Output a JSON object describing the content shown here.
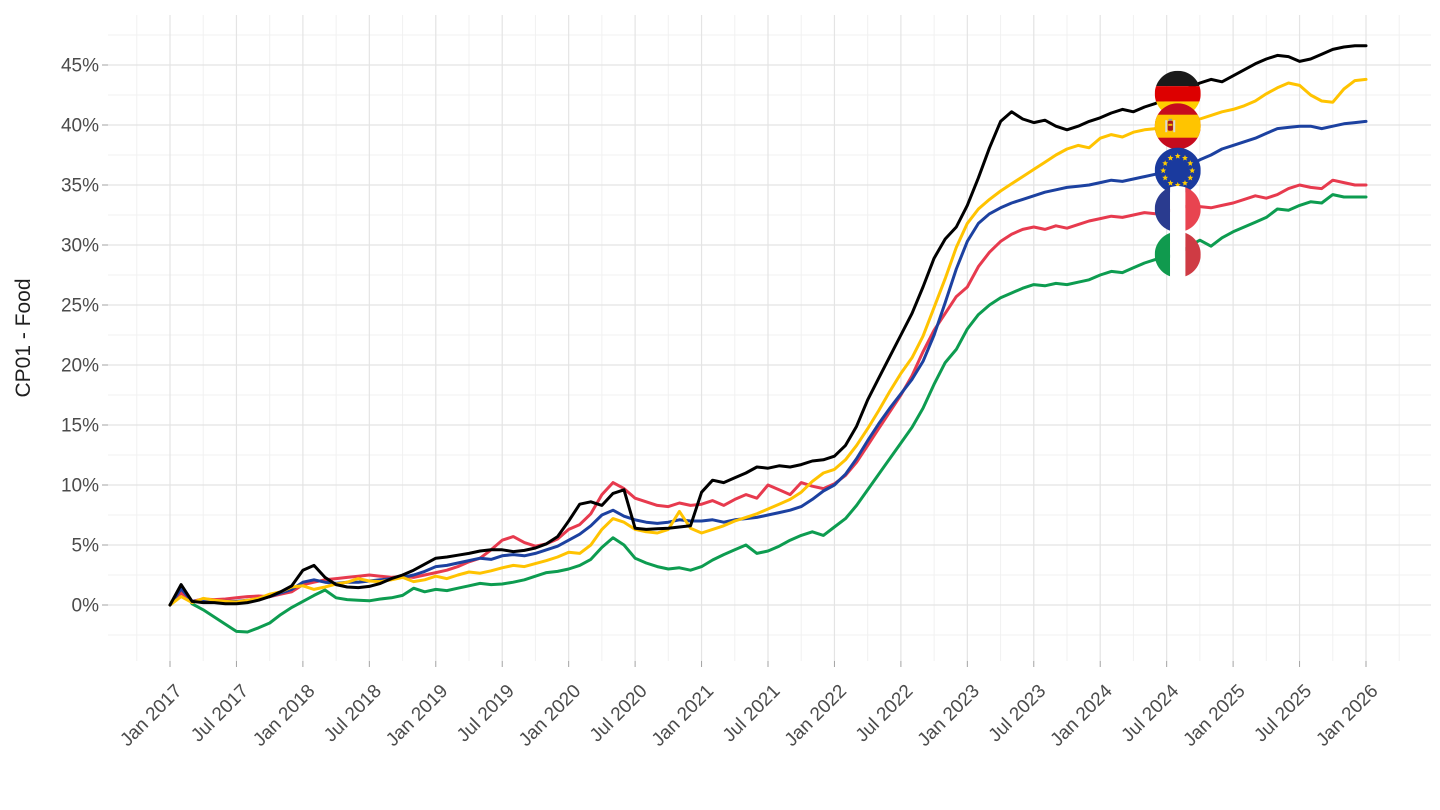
{
  "chart_data": {
    "type": "line",
    "title": "",
    "ylabel": "CP01 - Food",
    "xlabel": "",
    "grid": "major-minor",
    "legend_position": "none-flag-markers-on-lines",
    "x_unit": "months since Jan 2017",
    "x_tick_labels": [
      "Jan 2017",
      "Jul 2017",
      "Jan 2018",
      "Jul 2018",
      "Jan 2019",
      "Jul 2019",
      "Jan 2020",
      "Jul 2020",
      "Jan 2021",
      "Jul 2021",
      "Jan 2022",
      "Jul 2022",
      "Jan 2023",
      "Jul 2023",
      "Jan 2024",
      "Jul 2024",
      "Jan 2025",
      "Jul 2025",
      "Jan 2026"
    ],
    "y_tick_labels": [
      "0%",
      "5%",
      "10%",
      "15%",
      "20%",
      "25%",
      "30%",
      "35%",
      "40%",
      "45%"
    ],
    "y_tick_values": [
      0,
      5,
      10,
      15,
      20,
      25,
      30,
      35,
      40,
      45
    ],
    "ylim": [
      -4.7,
      49.3
    ],
    "x_months_total": 108,
    "flag_marker_month_index": 91,
    "series": [
      {
        "name": "Germany",
        "flag": "de",
        "color": "#000000",
        "values": [
          0.0,
          1.7,
          0.3,
          0.2,
          0.2,
          0.1,
          0.1,
          0.2,
          0.4,
          0.7,
          1.1,
          1.6,
          2.9,
          3.3,
          2.3,
          1.7,
          1.5,
          1.45,
          1.55,
          1.8,
          2.2,
          2.5,
          2.9,
          3.4,
          3.9,
          4.0,
          4.15,
          4.3,
          4.5,
          4.6,
          4.6,
          4.45,
          4.55,
          4.75,
          5.1,
          5.7,
          7.0,
          8.4,
          8.6,
          8.3,
          9.3,
          9.6,
          6.4,
          6.3,
          6.35,
          6.4,
          6.5,
          6.6,
          9.4,
          10.4,
          10.2,
          10.6,
          11.0,
          11.5,
          11.4,
          11.6,
          11.5,
          11.7,
          12.0,
          12.1,
          12.4,
          13.3,
          14.9,
          17.1,
          18.9,
          20.7,
          22.5,
          24.3,
          26.5,
          28.9,
          30.5,
          31.5,
          33.3,
          35.6,
          38.1,
          40.3,
          41.1,
          40.5,
          40.2,
          40.4,
          39.9,
          39.6,
          39.9,
          40.3,
          40.6,
          41.0,
          41.3,
          41.1,
          41.5,
          41.8,
          42.2,
          42.6,
          43.1,
          43.5,
          43.8,
          43.6,
          44.1,
          44.6,
          45.1,
          45.5,
          45.8,
          45.7,
          45.3,
          45.5,
          45.9,
          46.3,
          46.5,
          46.6,
          46.6
        ]
      },
      {
        "name": "Spain",
        "flag": "es",
        "color": "#ffc300",
        "values": [
          0.0,
          0.7,
          0.2,
          0.55,
          0.4,
          0.3,
          0.25,
          0.4,
          0.55,
          0.9,
          1.1,
          1.5,
          1.6,
          1.3,
          1.5,
          1.75,
          1.9,
          2.2,
          2.0,
          1.95,
          2.1,
          2.3,
          1.95,
          2.1,
          2.4,
          2.2,
          2.5,
          2.75,
          2.65,
          2.85,
          3.1,
          3.3,
          3.2,
          3.45,
          3.7,
          4.0,
          4.4,
          4.3,
          5.0,
          6.3,
          7.2,
          6.9,
          6.3,
          6.1,
          6.0,
          6.3,
          7.8,
          6.4,
          6.0,
          6.3,
          6.6,
          7.0,
          7.3,
          7.6,
          8.0,
          8.4,
          8.8,
          9.4,
          10.3,
          11.0,
          11.3,
          12.1,
          13.3,
          14.7,
          16.2,
          17.8,
          19.3,
          20.6,
          22.4,
          24.8,
          27.2,
          29.8,
          31.8,
          33.0,
          33.8,
          34.5,
          35.1,
          35.7,
          36.3,
          36.9,
          37.5,
          38.0,
          38.3,
          38.1,
          38.9,
          39.2,
          39.0,
          39.4,
          39.6,
          39.7,
          39.6,
          39.9,
          40.3,
          40.5,
          40.8,
          41.1,
          41.3,
          41.6,
          42.0,
          42.6,
          43.1,
          43.5,
          43.3,
          42.5,
          42.0,
          41.9,
          43.0,
          43.7,
          43.8
        ]
      },
      {
        "name": "European Union",
        "flag": "eu",
        "color": "#1c41a0",
        "values": [
          0.0,
          1.35,
          0.3,
          0.4,
          0.35,
          0.3,
          0.3,
          0.4,
          0.5,
          0.7,
          1.0,
          1.3,
          1.9,
          2.1,
          1.9,
          1.8,
          1.9,
          1.9,
          2.0,
          2.1,
          2.2,
          2.3,
          2.5,
          2.8,
          3.2,
          3.3,
          3.5,
          3.7,
          3.9,
          3.8,
          4.1,
          4.2,
          4.1,
          4.3,
          4.6,
          4.9,
          5.4,
          5.9,
          6.6,
          7.5,
          7.9,
          7.4,
          7.1,
          6.9,
          6.8,
          6.9,
          7.1,
          7.0,
          7.0,
          7.1,
          6.9,
          7.1,
          7.2,
          7.3,
          7.5,
          7.7,
          7.9,
          8.2,
          8.8,
          9.5,
          10.0,
          10.9,
          12.2,
          13.7,
          15.1,
          16.4,
          17.6,
          18.8,
          20.3,
          22.5,
          25.2,
          28.0,
          30.3,
          31.8,
          32.6,
          33.1,
          33.5,
          33.8,
          34.1,
          34.4,
          34.6,
          34.8,
          34.9,
          35.0,
          35.2,
          35.4,
          35.3,
          35.5,
          35.7,
          35.9,
          36.0,
          36.2,
          36.6,
          37.1,
          37.5,
          38.0,
          38.3,
          38.6,
          38.9,
          39.3,
          39.7,
          39.8,
          39.9,
          39.9,
          39.7,
          39.9,
          40.1,
          40.2,
          40.3
        ]
      },
      {
        "name": "France",
        "flag": "fr",
        "color": "#e73a4e",
        "values": [
          0.0,
          1.0,
          0.3,
          0.5,
          0.45,
          0.5,
          0.6,
          0.7,
          0.75,
          0.7,
          0.9,
          1.1,
          1.7,
          1.9,
          2.1,
          2.2,
          2.3,
          2.4,
          2.5,
          2.4,
          2.3,
          2.4,
          2.3,
          2.5,
          2.7,
          2.9,
          3.2,
          3.6,
          3.9,
          4.6,
          5.4,
          5.7,
          5.2,
          4.9,
          5.1,
          5.5,
          6.3,
          6.7,
          7.6,
          9.2,
          10.2,
          9.7,
          8.9,
          8.6,
          8.3,
          8.2,
          8.5,
          8.3,
          8.4,
          8.7,
          8.3,
          8.8,
          9.2,
          8.9,
          10.0,
          9.6,
          9.2,
          10.2,
          9.9,
          9.7,
          10.1,
          10.8,
          11.9,
          13.3,
          14.7,
          16.1,
          17.5,
          19.1,
          21.1,
          22.9,
          24.3,
          25.7,
          26.5,
          28.2,
          29.4,
          30.3,
          30.9,
          31.3,
          31.5,
          31.3,
          31.6,
          31.4,
          31.7,
          32.0,
          32.2,
          32.4,
          32.3,
          32.5,
          32.7,
          32.6,
          32.8,
          33.0,
          33.3,
          33.2,
          33.1,
          33.3,
          33.5,
          33.8,
          34.1,
          33.9,
          34.2,
          34.7,
          35.0,
          34.8,
          34.7,
          35.4,
          35.2,
          35.0,
          35.0
        ]
      },
      {
        "name": "Italy",
        "flag": "it",
        "color": "#0d9c50",
        "values": [
          0.0,
          1.55,
          0.1,
          -0.4,
          -1.0,
          -1.6,
          -2.2,
          -2.25,
          -1.9,
          -1.5,
          -0.8,
          -0.2,
          0.3,
          0.8,
          1.25,
          0.6,
          0.45,
          0.4,
          0.35,
          0.5,
          0.6,
          0.8,
          1.4,
          1.1,
          1.3,
          1.2,
          1.4,
          1.6,
          1.8,
          1.7,
          1.75,
          1.9,
          2.1,
          2.4,
          2.7,
          2.8,
          3.0,
          3.3,
          3.8,
          4.8,
          5.6,
          5.0,
          3.9,
          3.5,
          3.2,
          3.0,
          3.1,
          2.9,
          3.2,
          3.75,
          4.2,
          4.6,
          5.0,
          4.3,
          4.5,
          4.9,
          5.4,
          5.8,
          6.1,
          5.8,
          6.5,
          7.2,
          8.3,
          9.6,
          10.9,
          12.2,
          13.5,
          14.8,
          16.4,
          18.4,
          20.2,
          21.3,
          23.0,
          24.2,
          25.0,
          25.6,
          26.0,
          26.4,
          26.7,
          26.6,
          26.8,
          26.7,
          26.9,
          27.1,
          27.5,
          27.8,
          27.7,
          28.1,
          28.5,
          28.8,
          29.0,
          29.2,
          29.9,
          30.4,
          29.9,
          30.6,
          31.1,
          31.5,
          31.9,
          32.3,
          33.0,
          32.9,
          33.3,
          33.6,
          33.5,
          34.2,
          34.0,
          34.0,
          34.0
        ]
      }
    ],
    "colors": {
      "grid_major": "#e4e4e4",
      "grid_minor": "#f1f1f1",
      "axis_tick": "#a3a3a3",
      "tick_text": "#4b4b4b",
      "background": "#ffffff",
      "flag_de": [
        "#1a1a1a",
        "#dd0000",
        "#ffce00"
      ],
      "flag_es": [
        "#c60b1e",
        "#ffc400"
      ],
      "flag_eu": [
        "#1a3a9e",
        "#ffcc00"
      ],
      "flag_fr": [
        "#2a3b8f",
        "#ffffff",
        "#e84450"
      ],
      "flag_it": [
        "#109a4e",
        "#ffffff",
        "#cf3b44"
      ]
    }
  }
}
